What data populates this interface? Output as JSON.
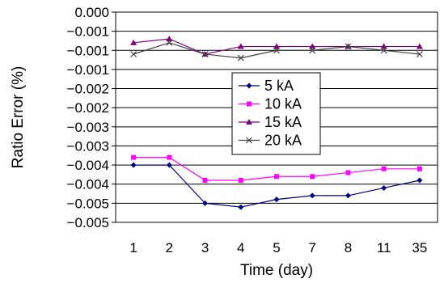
{
  "chart_data": {
    "type": "line",
    "title": "",
    "xlabel": "Time (day)",
    "ylabel": "Ratio Error (%)",
    "categories": [
      "1",
      "2",
      "3",
      "4",
      "5",
      "7",
      "8",
      "11",
      "35"
    ],
    "y_tick_labels": [
      "0.000",
      "−0.001",
      "−0.001",
      "−0.001",
      "−0.002",
      "−0.002",
      "−0.003",
      "−0.003",
      "−0.004",
      "−0.004",
      "−0.005",
      "−0.005"
    ],
    "ylim": [
      -0.0055,
      0.0
    ],
    "grid": "horizontal",
    "legend_position": "center-right",
    "series": [
      {
        "name": "5 kA",
        "color": "#000080",
        "marker": "diamond",
        "values": [
          -0.004,
          -0.004,
          -0.005,
          -0.0051,
          -0.0049,
          -0.0048,
          -0.0048,
          -0.0046,
          -0.0044
        ]
      },
      {
        "name": "10 kA",
        "color": "#ff00ff",
        "marker": "square",
        "values": [
          -0.0038,
          -0.0038,
          -0.0044,
          -0.0044,
          -0.0043,
          -0.0043,
          -0.0042,
          -0.0041,
          -0.0041
        ]
      },
      {
        "name": "15 kA",
        "color": "#800080",
        "marker": "triangle",
        "values": [
          -0.0008,
          -0.0007,
          -0.0011,
          -0.0009,
          -0.0009,
          -0.0009,
          -0.0009,
          -0.0009,
          -0.0009
        ]
      },
      {
        "name": "20 kA",
        "color": "#404040",
        "marker": "x",
        "values": [
          -0.0011,
          -0.0008,
          -0.0011,
          -0.0012,
          -0.001,
          -0.001,
          -0.0009,
          -0.001,
          -0.0011
        ]
      }
    ]
  }
}
